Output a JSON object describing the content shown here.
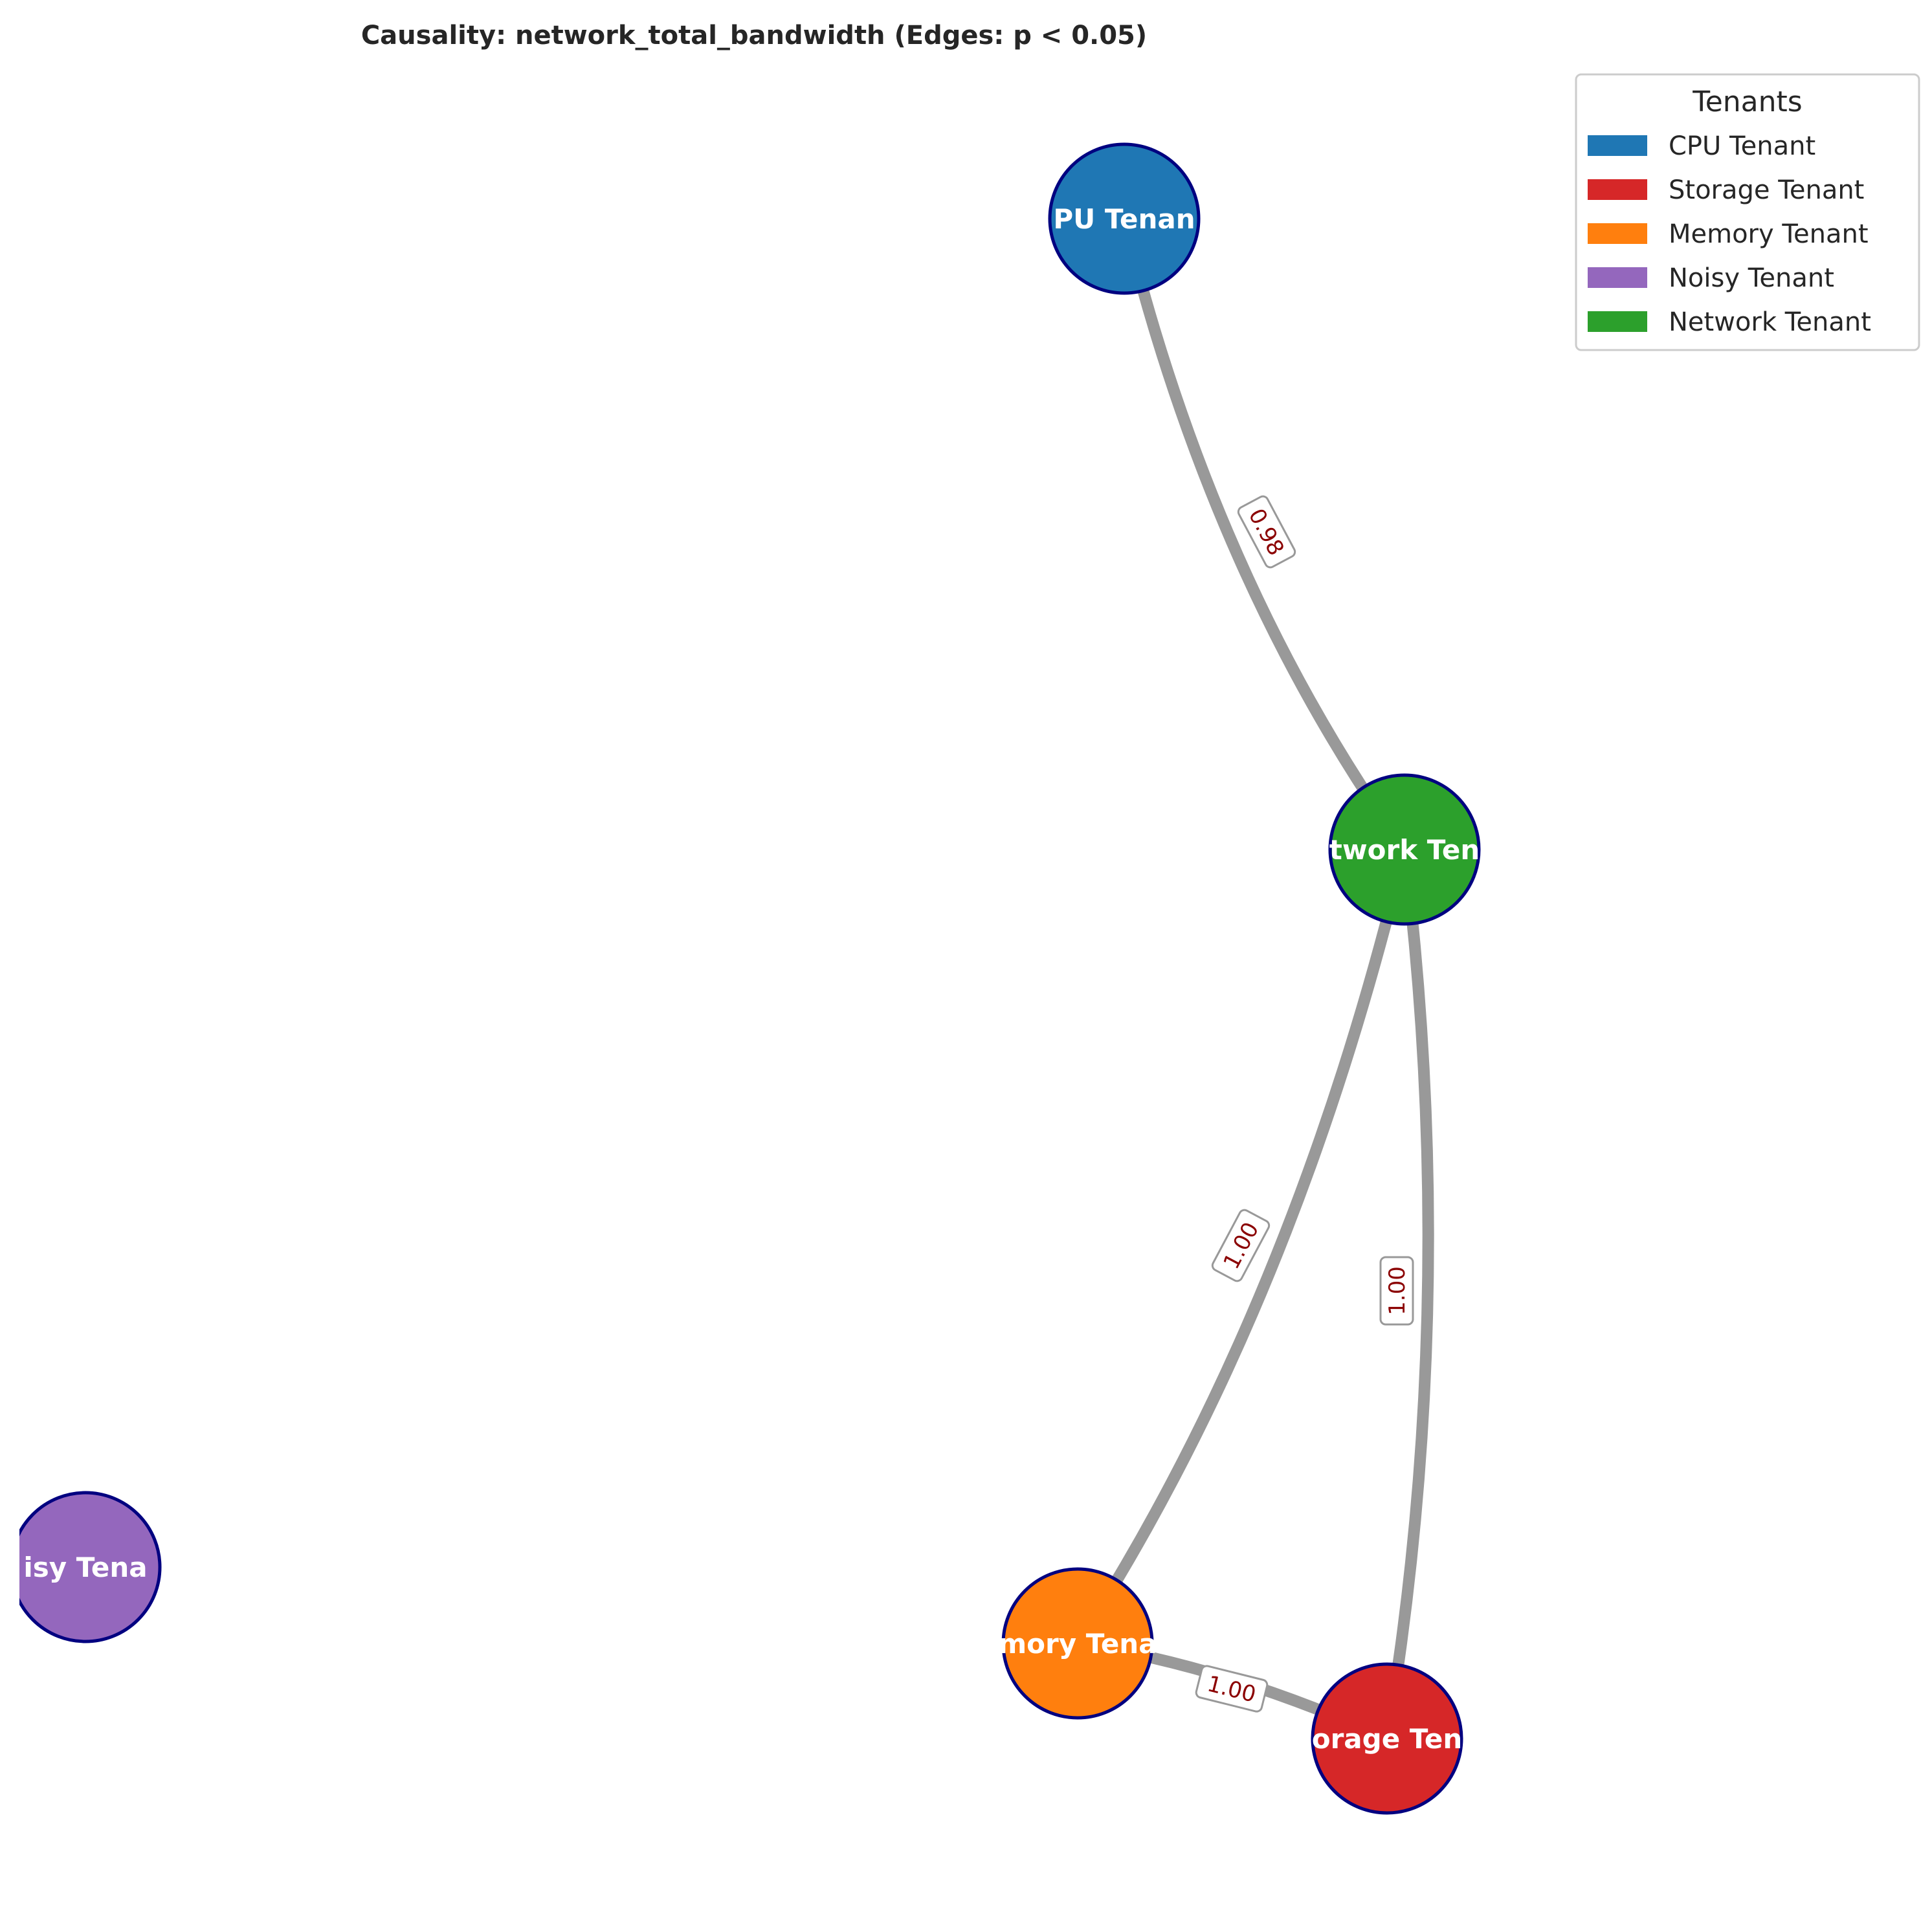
{
  "title": "Causality: network_total_bandwidth (Edges: p < 0.05)",
  "colors": {
    "node_border": "#000080",
    "edge": "#999999",
    "edge_label_text": "#8b0000",
    "node_text": "#ffffff"
  },
  "nodes": [
    {
      "id": "cpu",
      "label": "CPU Tenant",
      "visible_text": "PU Tenan",
      "color": "#1f77b4"
    },
    {
      "id": "network",
      "label": "Network Tenant",
      "visible_text": "twork Ten",
      "color": "#2ca02c"
    },
    {
      "id": "memory",
      "label": "Memory Tenant",
      "visible_text": "mory Tena",
      "color": "#ff7f0e"
    },
    {
      "id": "storage",
      "label": "Storage Tenant",
      "visible_text": "orage Ten",
      "color": "#d62728"
    },
    {
      "id": "noisy",
      "label": "Noisy Tenant",
      "visible_text": "isy Tena",
      "color": "#9467bd"
    }
  ],
  "edges": [
    {
      "source": "cpu",
      "target": "network",
      "label": "0.98"
    },
    {
      "source": "network",
      "target": "memory",
      "label": "1.00"
    },
    {
      "source": "network",
      "target": "storage",
      "label": "1.00"
    },
    {
      "source": "memory",
      "target": "storage",
      "label": "1.00"
    }
  ],
  "legend": {
    "title": "Tenants",
    "items": [
      {
        "label": "CPU Tenant",
        "color": "#1f77b4"
      },
      {
        "label": "Storage Tenant",
        "color": "#d62728"
      },
      {
        "label": "Memory Tenant",
        "color": "#ff7f0e"
      },
      {
        "label": "Noisy Tenant",
        "color": "#9467bd"
      },
      {
        "label": "Network Tenant",
        "color": "#2ca02c"
      }
    ]
  }
}
